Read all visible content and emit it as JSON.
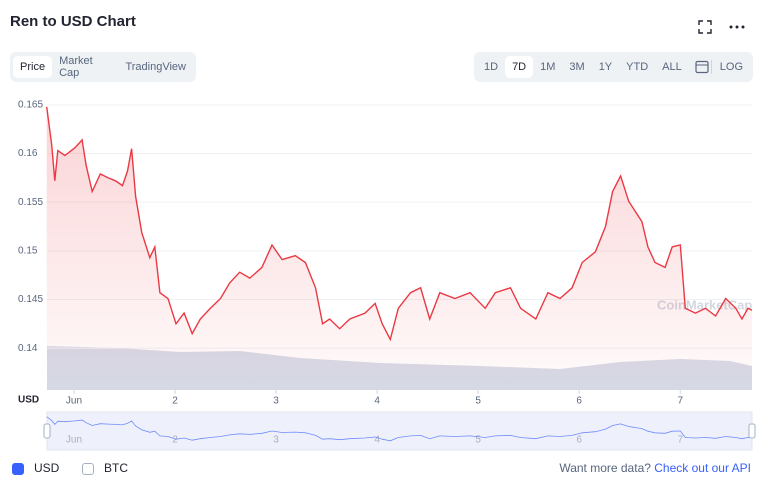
{
  "chart_data": {
    "type": "line",
    "title": "Ren to USD Chart",
    "y_label": "USD",
    "watermark": "CoinMarketCap",
    "x": [
      0.73,
      0.78,
      0.81,
      0.84,
      0.91,
      1.01,
      1.08,
      1.12,
      1.18,
      1.26,
      1.34,
      1.41,
      1.48,
      1.53,
      1.57,
      1.61,
      1.67,
      1.75,
      1.8,
      1.85,
      1.93,
      2.01,
      2.09,
      2.17,
      2.25,
      2.35,
      2.45,
      2.54,
      2.64,
      2.74,
      2.86,
      2.96,
      3.06,
      3.19,
      3.29,
      3.39,
      3.46,
      3.53,
      3.63,
      3.73,
      3.88,
      3.98,
      4.05,
      4.13,
      4.21,
      4.33,
      4.43,
      4.52,
      4.62,
      4.77,
      4.92,
      5.07,
      5.17,
      5.32,
      5.42,
      5.57,
      5.69,
      5.81,
      5.93,
      6.03,
      6.16,
      6.26,
      6.33,
      6.41,
      6.49,
      6.62,
      6.68,
      6.75,
      6.85,
      6.92,
      7.0,
      7.05,
      7.15,
      7.25,
      7.35,
      7.45,
      7.55,
      7.61,
      7.67,
      7.71
    ],
    "series": [
      {
        "name": "USD",
        "color": "#ea3943",
        "values": [
          0.1648,
          0.1609,
          0.1572,
          0.1603,
          0.1598,
          0.1606,
          0.1614,
          0.1588,
          0.1561,
          0.1579,
          0.1575,
          0.1572,
          0.1567,
          0.1582,
          0.1605,
          0.1556,
          0.1519,
          0.1493,
          0.1504,
          0.1457,
          0.1451,
          0.1425,
          0.1436,
          0.1415,
          0.143,
          0.1441,
          0.1451,
          0.1467,
          0.1478,
          0.1472,
          0.1483,
          0.1506,
          0.1491,
          0.1495,
          0.1488,
          0.1462,
          0.1425,
          0.143,
          0.142,
          0.143,
          0.1436,
          0.1446,
          0.1425,
          0.1409,
          0.1441,
          0.1457,
          0.1462,
          0.143,
          0.1457,
          0.1451,
          0.1457,
          0.1441,
          0.1457,
          0.1462,
          0.1441,
          0.143,
          0.1457,
          0.1451,
          0.1462,
          0.1488,
          0.1499,
          0.1525,
          0.1561,
          0.1577,
          0.1551,
          0.153,
          0.1504,
          0.1488,
          0.1483,
          0.1504,
          0.1506,
          0.1441,
          0.1436,
          0.1441,
          0.1433,
          0.1451,
          0.1441,
          0.143,
          0.1441,
          0.1439
        ]
      }
    ],
    "xlim": [
      0.733,
      7.71
    ],
    "xticks": [
      {
        "value": 1,
        "label": "Jun"
      },
      2,
      3,
      4,
      5,
      6,
      7
    ],
    "ylim": [
      0.1357,
      0.1655
    ],
    "yticks": [
      0.14,
      0.145,
      0.15,
      0.155,
      0.16,
      0.165
    ],
    "grid": true
  },
  "tabs": [
    "Price",
    "Market Cap",
    "TradingView"
  ],
  "ranges": [
    "1D",
    "7D",
    "1M",
    "3M",
    "1Y",
    "YTD",
    "ALL",
    "LOG"
  ],
  "currency_toggle": [
    "USD",
    "BTC"
  ],
  "footer": {
    "text": "Want more data?",
    "link": "Check out our API"
  }
}
